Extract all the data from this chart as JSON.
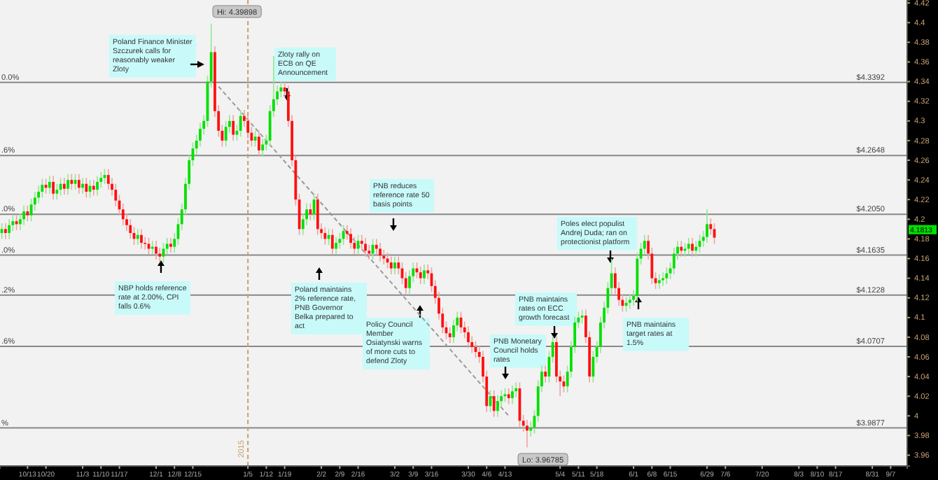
{
  "chart_data": {
    "type": "candlestick",
    "ylim": [
      3.949,
      4.423
    ],
    "categories": [
      null,
      null,
      null,
      null,
      null,
      null,
      null,
      "10/13",
      null,
      null,
      null,
      null,
      "10/20",
      null,
      null,
      null,
      null,
      null,
      null,
      null,
      null,
      null,
      "11/3",
      null,
      null,
      null,
      null,
      "11/10",
      null,
      null,
      null,
      null,
      "11/17",
      null,
      null,
      null,
      null,
      null,
      null,
      null,
      null,
      null,
      "12/1",
      null,
      null,
      null,
      null,
      "12/8",
      null,
      null,
      null,
      null,
      "12/15",
      null,
      null,
      null,
      null,
      null,
      null,
      null,
      null,
      null,
      null,
      null,
      null,
      null,
      null,
      "1/5",
      null,
      null,
      null,
      null,
      "1/12",
      null,
      null,
      null,
      null,
      "1/19",
      null,
      null,
      null,
      null,
      null,
      null,
      null,
      null,
      null,
      "2/2",
      null,
      null,
      null,
      null,
      "2/9",
      null,
      null,
      null,
      null,
      "2/16",
      null,
      null,
      null,
      null,
      null,
      null,
      null,
      null,
      null,
      "3/2",
      null,
      null,
      null,
      null,
      "3/9",
      null,
      null,
      null,
      null,
      "3/16",
      null,
      null,
      null,
      null,
      null,
      null,
      null,
      null,
      null,
      "3/30",
      null,
      null,
      null,
      null,
      "4/6",
      null,
      null,
      null,
      null,
      "4/13",
      null,
      null,
      null,
      null,
      null,
      null,
      null,
      null,
      null,
      null,
      null,
      null,
      null,
      null,
      "5/4",
      null,
      null,
      null,
      null,
      "5/11",
      null,
      null,
      null,
      null,
      "5/18",
      null,
      null,
      null,
      null,
      null,
      null,
      null,
      null,
      null,
      "6/1",
      null,
      null,
      null,
      null,
      "6/8",
      null,
      null,
      null,
      null,
      "6/15",
      null,
      null,
      null,
      null,
      null,
      null,
      null,
      null,
      null,
      "6/29",
      null,
      null,
      null,
      null,
      "7/6",
      null,
      null,
      null,
      null,
      null,
      null,
      null,
      null,
      null,
      "7/20",
      null,
      null,
      null,
      null,
      null,
      null,
      null,
      null,
      null,
      "8/3",
      null,
      null,
      null,
      null,
      "8/10",
      null,
      null,
      null,
      null,
      "8/17",
      null,
      null,
      null,
      null,
      null,
      null,
      null,
      null,
      null,
      "8/31",
      null,
      null,
      null,
      null,
      "9/7",
      null,
      null,
      null,
      null
    ],
    "yticks": [
      3.96,
      3.98,
      4,
      4.02,
      4.04,
      4.06,
      4.08,
      4.1,
      4.12,
      4.14,
      4.16,
      4.18,
      4.2,
      4.22,
      4.24,
      4.26,
      4.28,
      4.3,
      4.32,
      4.34,
      4.36,
      4.38,
      4.4,
      4.42
    ],
    "ohlc": [
      [
        4.186,
        4.196,
        4.18,
        4.19
      ],
      [
        4.19,
        4.196,
        4.18,
        4.186
      ],
      [
        4.186,
        4.2,
        4.18,
        4.194
      ],
      [
        4.194,
        4.204,
        4.188,
        4.198
      ],
      [
        4.198,
        4.204,
        4.189,
        4.195
      ],
      [
        4.195,
        4.206,
        4.189,
        4.2
      ],
      [
        4.2,
        4.214,
        4.194,
        4.208
      ],
      [
        4.208,
        4.214,
        4.198,
        4.204
      ],
      [
        4.204,
        4.221,
        4.198,
        4.215
      ],
      [
        4.215,
        4.228,
        4.209,
        4.222
      ],
      [
        4.222,
        4.234,
        4.216,
        4.228
      ],
      [
        4.228,
        4.241,
        4.222,
        4.235
      ],
      [
        4.235,
        4.241,
        4.226,
        4.232
      ],
      [
        4.232,
        4.244,
        4.226,
        4.238
      ],
      [
        4.238,
        4.244,
        4.22,
        4.226
      ],
      [
        4.226,
        4.236,
        4.22,
        4.23
      ],
      [
        4.23,
        4.242,
        4.224,
        4.236
      ],
      [
        4.236,
        4.242,
        4.225,
        4.231
      ],
      [
        4.231,
        4.246,
        4.225,
        4.24
      ],
      [
        4.24,
        4.246,
        4.23,
        4.236
      ],
      [
        4.236,
        4.246,
        4.23,
        4.24
      ],
      [
        4.24,
        4.246,
        4.226,
        4.232
      ],
      [
        4.232,
        4.242,
        4.226,
        4.236
      ],
      [
        4.236,
        4.242,
        4.222,
        4.228
      ],
      [
        4.228,
        4.24,
        4.222,
        4.234
      ],
      [
        4.234,
        4.24,
        4.224,
        4.23
      ],
      [
        4.23,
        4.244,
        4.224,
        4.238
      ],
      [
        4.238,
        4.248,
        4.232,
        4.242
      ],
      [
        4.242,
        4.251,
        4.236,
        4.245
      ],
      [
        4.245,
        4.251,
        4.23,
        4.236
      ],
      [
        4.236,
        4.242,
        4.224,
        4.23
      ],
      [
        4.23,
        4.236,
        4.213,
        4.219
      ],
      [
        4.219,
        4.225,
        4.204,
        4.21
      ],
      [
        4.21,
        4.216,
        4.194,
        4.2
      ],
      [
        4.2,
        4.206,
        4.188,
        4.194
      ],
      [
        4.194,
        4.2,
        4.18,
        4.186
      ],
      [
        4.186,
        4.192,
        4.174,
        4.18
      ],
      [
        4.18,
        4.19,
        4.174,
        4.184
      ],
      [
        4.184,
        4.19,
        4.17,
        4.176
      ],
      [
        4.176,
        4.182,
        4.169,
        4.175
      ],
      [
        4.175,
        4.181,
        4.164,
        4.17
      ],
      [
        4.17,
        4.178,
        4.164,
        4.172
      ],
      [
        4.172,
        4.178,
        4.159,
        4.165
      ],
      [
        4.165,
        4.171,
        4.156,
        4.162
      ],
      [
        4.162,
        4.176,
        4.156,
        4.17
      ],
      [
        4.17,
        4.181,
        4.164,
        4.175
      ],
      [
        4.175,
        4.181,
        4.166,
        4.172
      ],
      [
        4.172,
        4.186,
        4.166,
        4.18
      ],
      [
        4.18,
        4.201,
        4.174,
        4.195
      ],
      [
        4.195,
        4.216,
        4.189,
        4.21
      ],
      [
        4.21,
        4.242,
        4.204,
        4.236
      ],
      [
        4.236,
        4.266,
        4.23,
        4.26
      ],
      [
        4.26,
        4.278,
        4.254,
        4.272
      ],
      [
        4.272,
        4.286,
        4.266,
        4.28
      ],
      [
        4.28,
        4.298,
        4.274,
        4.292
      ],
      [
        4.292,
        4.306,
        4.286,
        4.3
      ],
      [
        4.3,
        4.346,
        4.294,
        4.34
      ],
      [
        4.34,
        4.39898,
        4.334,
        4.37
      ],
      [
        4.37,
        4.376,
        4.304,
        4.31
      ],
      [
        4.31,
        4.316,
        4.284,
        4.29
      ],
      [
        4.29,
        4.296,
        4.274,
        4.28
      ],
      [
        4.28,
        4.3,
        4.274,
        4.294
      ],
      [
        4.294,
        4.306,
        4.288,
        4.3
      ],
      [
        4.3,
        4.306,
        4.28,
        4.286
      ],
      [
        4.286,
        4.296,
        4.28,
        4.29
      ],
      [
        4.29,
        4.311,
        4.284,
        4.305
      ],
      [
        4.305,
        4.311,
        4.294,
        4.3
      ],
      [
        4.3,
        4.306,
        4.282,
        4.288
      ],
      [
        4.288,
        4.294,
        4.274,
        4.28
      ],
      [
        4.28,
        4.29,
        4.274,
        4.284
      ],
      [
        4.284,
        4.29,
        4.264,
        4.27
      ],
      [
        4.27,
        4.282,
        4.264,
        4.276
      ],
      [
        4.276,
        4.286,
        4.27,
        4.28
      ],
      [
        4.28,
        4.316,
        4.274,
        4.31
      ],
      [
        4.31,
        4.366,
        4.304,
        4.322
      ],
      [
        4.322,
        4.336,
        4.316,
        4.33
      ],
      [
        4.33,
        4.34,
        4.324,
        4.334
      ],
      [
        4.334,
        4.34,
        4.324,
        4.33
      ],
      [
        4.33,
        4.336,
        4.294,
        4.3
      ],
      [
        4.3,
        4.306,
        4.254,
        4.26
      ],
      [
        4.26,
        4.266,
        4.214,
        4.22
      ],
      [
        4.22,
        4.226,
        4.184,
        4.19
      ],
      [
        4.19,
        4.206,
        4.184,
        4.2
      ],
      [
        4.2,
        4.216,
        4.194,
        4.21
      ],
      [
        4.21,
        4.216,
        4.199,
        4.205
      ],
      [
        4.205,
        4.226,
        4.199,
        4.22
      ],
      [
        4.22,
        4.226,
        4.184,
        4.19
      ],
      [
        4.19,
        4.196,
        4.18,
        4.186
      ],
      [
        4.186,
        4.192,
        4.174,
        4.18
      ],
      [
        4.18,
        4.19,
        4.174,
        4.184
      ],
      [
        4.184,
        4.19,
        4.164,
        4.17
      ],
      [
        4.17,
        4.182,
        4.164,
        4.176
      ],
      [
        4.176,
        4.186,
        4.17,
        4.18
      ],
      [
        4.18,
        4.194,
        4.174,
        4.188
      ],
      [
        4.188,
        4.194,
        4.179,
        4.185
      ],
      [
        4.185,
        4.191,
        4.17,
        4.176
      ],
      [
        4.176,
        4.182,
        4.164,
        4.17
      ],
      [
        4.17,
        4.184,
        4.164,
        4.178
      ],
      [
        4.178,
        4.184,
        4.169,
        4.175
      ],
      [
        4.175,
        4.181,
        4.162,
        4.168
      ],
      [
        4.168,
        4.174,
        4.159,
        4.165
      ],
      [
        4.165,
        4.18,
        4.159,
        4.174
      ],
      [
        4.174,
        4.18,
        4.164,
        4.17
      ],
      [
        4.17,
        4.176,
        4.157,
        4.163
      ],
      [
        4.163,
        4.169,
        4.154,
        4.16
      ],
      [
        4.16,
        4.166,
        4.15,
        4.156
      ],
      [
        4.156,
        4.162,
        4.144,
        4.15
      ],
      [
        4.15,
        4.162,
        4.144,
        4.156
      ],
      [
        4.156,
        4.162,
        4.144,
        4.15
      ],
      [
        4.15,
        4.156,
        4.134,
        4.14
      ],
      [
        4.14,
        4.146,
        4.124,
        4.13
      ],
      [
        4.13,
        4.148,
        4.124,
        4.142
      ],
      [
        4.142,
        4.156,
        4.136,
        4.15
      ],
      [
        4.15,
        4.156,
        4.14,
        4.146
      ],
      [
        4.146,
        4.152,
        4.134,
        4.14
      ],
      [
        4.14,
        4.154,
        4.134,
        4.148
      ],
      [
        4.148,
        4.154,
        4.139,
        4.145
      ],
      [
        4.145,
        4.151,
        4.126,
        4.132
      ],
      [
        4.132,
        4.138,
        4.114,
        4.12
      ],
      [
        4.12,
        4.126,
        4.098,
        4.104
      ],
      [
        4.104,
        4.11,
        4.084,
        4.09
      ],
      [
        4.09,
        4.096,
        4.078,
        4.084
      ],
      [
        4.084,
        4.09,
        4.074,
        4.08
      ],
      [
        4.08,
        4.098,
        4.074,
        4.092
      ],
      [
        4.092,
        4.106,
        4.086,
        4.1
      ],
      [
        4.1,
        4.106,
        4.084,
        4.09
      ],
      [
        4.09,
        4.096,
        4.079,
        4.085
      ],
      [
        4.085,
        4.091,
        4.069,
        4.075
      ],
      [
        4.075,
        4.081,
        4.064,
        4.07
      ],
      [
        4.07,
        4.076,
        4.059,
        4.065
      ],
      [
        4.065,
        4.071,
        4.054,
        4.06
      ],
      [
        4.06,
        4.066,
        4.034,
        4.04
      ],
      [
        4.04,
        4.046,
        4.004,
        4.01
      ],
      [
        4.01,
        4.026,
        4.004,
        4.02
      ],
      [
        4.02,
        4.026,
        3.999,
        4.005
      ],
      [
        4.005,
        4.021,
        3.999,
        4.015
      ],
      [
        4.015,
        4.026,
        4.009,
        4.02
      ],
      [
        4.02,
        4.028,
        4.014,
        4.022
      ],
      [
        4.022,
        4.028,
        4.012,
        4.018
      ],
      [
        4.018,
        4.031,
        4.012,
        4.025
      ],
      [
        4.025,
        4.034,
        4.019,
        4.028
      ],
      [
        4.028,
        4.034,
        3.989,
        3.995
      ],
      [
        3.995,
        4.001,
        3.984,
        3.99
      ],
      [
        3.99,
        3.996,
        3.96785,
        3.985
      ],
      [
        3.985,
        3.994,
        3.979,
        3.988
      ],
      [
        3.988,
        4.006,
        3.982,
        4.0
      ],
      [
        4.0,
        4.036,
        3.994,
        4.03
      ],
      [
        4.03,
        4.051,
        4.024,
        4.045
      ],
      [
        4.045,
        4.051,
        4.034,
        4.04
      ],
      [
        4.04,
        4.066,
        4.034,
        4.06
      ],
      [
        4.06,
        4.081,
        4.054,
        4.075
      ],
      [
        4.075,
        4.081,
        4.034,
        4.04
      ],
      [
        4.04,
        4.046,
        4.02,
        4.035
      ],
      [
        4.035,
        4.041,
        4.024,
        4.03
      ],
      [
        4.03,
        4.051,
        4.024,
        4.045
      ],
      [
        4.045,
        4.076,
        4.039,
        4.07
      ],
      [
        4.07,
        4.101,
        4.064,
        4.095
      ],
      [
        4.095,
        4.106,
        4.089,
        4.1
      ],
      [
        4.1,
        4.108,
        4.094,
        4.102
      ],
      [
        4.102,
        4.108,
        4.074,
        4.08
      ],
      [
        4.08,
        4.086,
        4.034,
        4.04
      ],
      [
        4.04,
        4.066,
        4.034,
        4.06
      ],
      [
        4.06,
        4.076,
        4.054,
        4.07
      ],
      [
        4.07,
        4.101,
        4.064,
        4.095
      ],
      [
        4.095,
        4.116,
        4.089,
        4.11
      ],
      [
        4.11,
        4.136,
        4.104,
        4.13
      ],
      [
        4.13,
        4.16,
        4.124,
        4.145
      ],
      [
        4.145,
        4.151,
        4.124,
        4.13
      ],
      [
        4.13,
        4.136,
        4.112,
        4.118
      ],
      [
        4.118,
        4.124,
        4.106,
        4.112
      ],
      [
        4.112,
        4.121,
        4.106,
        4.115
      ],
      [
        4.115,
        4.124,
        4.109,
        4.118
      ],
      [
        4.118,
        4.128,
        4.112,
        4.122
      ],
      [
        4.122,
        4.166,
        4.116,
        4.16
      ],
      [
        4.16,
        4.176,
        4.154,
        4.17
      ],
      [
        4.17,
        4.184,
        4.164,
        4.178
      ],
      [
        4.178,
        4.184,
        4.159,
        4.165
      ],
      [
        4.165,
        4.171,
        4.134,
        4.14
      ],
      [
        4.14,
        4.146,
        4.129,
        4.135
      ],
      [
        4.135,
        4.144,
        4.129,
        4.138
      ],
      [
        4.138,
        4.146,
        4.132,
        4.14
      ],
      [
        4.14,
        4.151,
        4.134,
        4.145
      ],
      [
        4.145,
        4.156,
        4.139,
        4.15
      ],
      [
        4.15,
        4.171,
        4.144,
        4.165
      ],
      [
        4.165,
        4.178,
        4.159,
        4.172
      ],
      [
        4.172,
        4.178,
        4.162,
        4.168
      ],
      [
        4.168,
        4.176,
        4.162,
        4.17
      ],
      [
        4.17,
        4.181,
        4.164,
        4.175
      ],
      [
        4.175,
        4.181,
        4.162,
        4.168
      ],
      [
        4.168,
        4.178,
        4.162,
        4.172
      ],
      [
        4.172,
        4.184,
        4.166,
        4.178
      ],
      [
        4.178,
        4.188,
        4.172,
        4.182
      ],
      [
        4.182,
        4.21,
        4.176,
        4.195
      ],
      [
        4.195,
        4.201,
        4.184,
        4.19
      ],
      [
        4.19,
        4.196,
        4.175,
        4.1813
      ],
      null,
      null,
      null,
      null,
      null,
      null,
      null,
      null,
      null,
      null,
      null,
      null,
      null,
      null,
      null,
      null,
      null,
      null,
      null,
      null,
      null,
      null,
      null,
      null,
      null,
      null,
      null,
      null,
      null,
      null,
      null,
      null,
      null,
      null,
      null,
      null,
      null,
      null,
      null,
      null,
      null,
      null,
      null,
      null,
      null,
      null,
      null,
      null,
      null,
      null,
      null,
      null
    ],
    "series": [
      {
        "type": "line",
        "values": [
          null,
          null,
          null,
          null,
          null,
          null,
          null,
          null,
          null,
          null,
          null,
          null,
          null,
          null,
          null,
          null,
          null,
          null,
          null,
          null,
          null,
          null,
          null,
          null,
          null,
          null,
          null,
          null,
          null,
          null,
          null,
          null,
          null,
          null,
          null,
          null,
          null,
          null,
          null,
          null,
          null,
          null,
          null,
          null,
          null,
          null,
          null,
          null,
          null,
          null,
          null,
          null,
          null,
          null,
          null,
          null,
          null,
          null,
          null,
          4.335,
          null,
          null,
          null,
          null,
          null,
          null,
          null,
          null,
          null,
          null,
          null,
          null,
          null,
          null,
          null,
          null,
          null,
          null,
          null,
          null,
          null,
          null,
          null,
          null,
          null,
          null,
          null,
          null,
          null,
          null,
          null,
          null,
          null,
          null,
          null,
          null,
          null,
          null,
          null,
          null,
          null,
          null,
          null,
          null,
          null,
          null,
          null,
          null,
          null,
          null,
          null,
          null,
          null,
          null,
          null,
          null,
          null,
          null,
          null,
          null,
          null,
          null,
          null,
          null,
          null,
          null,
          null,
          null,
          null,
          null,
          null,
          null,
          null,
          null,
          null,
          null,
          null,
          null,
          4.0,
          null,
          null,
          null,
          null,
          null,
          null,
          null,
          null,
          null,
          null,
          null,
          null,
          null,
          null,
          null,
          null,
          null,
          null,
          null,
          null,
          null,
          null,
          null,
          null,
          null,
          null,
          null,
          null,
          null,
          null,
          null,
          null,
          null,
          null,
          null,
          null,
          null,
          null,
          null,
          null,
          null,
          null,
          null,
          null,
          null,
          null,
          null,
          null,
          null,
          null,
          null,
          null,
          null,
          null,
          null,
          null,
          null,
          null,
          null,
          null,
          null,
          null,
          null,
          null,
          null,
          null,
          null,
          null,
          null,
          null,
          null,
          null,
          null,
          null,
          null,
          null,
          null,
          null,
          null,
          null,
          null,
          null,
          null,
          null,
          null,
          null,
          null,
          null,
          null,
          null,
          null,
          null,
          null,
          null,
          null,
          null,
          null,
          null,
          null,
          null,
          null,
          null,
          null,
          null,
          null,
          null,
          null,
          null
        ],
        "color": "#999999",
        "line_style": "dashed"
      }
    ],
    "ref_lines": [
      {
        "axis": "y",
        "value": 4.3392,
        "label": "$4.3392",
        "color": "#888888"
      },
      {
        "axis": "y",
        "value": 4.2648,
        "label": "$4.2648",
        "color": "#888888"
      },
      {
        "axis": "y",
        "value": 4.205,
        "label": "$4.2050",
        "color": "#888888"
      },
      {
        "axis": "y",
        "value": 4.1635,
        "label": "$4.1635",
        "color": "#888888"
      },
      {
        "axis": "y",
        "value": 4.1228,
        "label": "$4.1228",
        "color": "#888888"
      },
      {
        "axis": "y",
        "value": 4.0707,
        "label": "$4.0707",
        "color": "#888888"
      },
      {
        "axis": "y",
        "value": 3.9877,
        "label": "$3.9877",
        "color": "#888888"
      },
      {
        "axis": "x",
        "value": "1/5",
        "label": "2015",
        "color": "#c8a070",
        "line_style": "dashed"
      }
    ],
    "annotations": [
      "Poland Finance Minister Szczurek calls for reasonably weaker Zloty",
      "Zloty rally on ECB on QE Announcement",
      "PNB reduces reference rate 50 basis points",
      "Poles elect populist Andrej Duda; ran on protectionist platform",
      "NBP holds reference rate at 2.00%, CPI falls 0.6%",
      "Poland maintains 2% reference rate, PNB Governor Belka prepared to act",
      "Policy Council Member Osiatynski warns of more cuts to defend Zloty",
      "PNB maintains rates on ECC growth forecast",
      "PNB Monetary Council holds rates",
      "PNB maintains target  rates at 1.5%",
      "Hi: 4.39898",
      "Lo: 3.96785",
      "0.0%",
      ".6%",
      ".0%",
      ".0%",
      ".2%",
      ".6%",
      "%",
      "4.1813"
    ]
  }
}
